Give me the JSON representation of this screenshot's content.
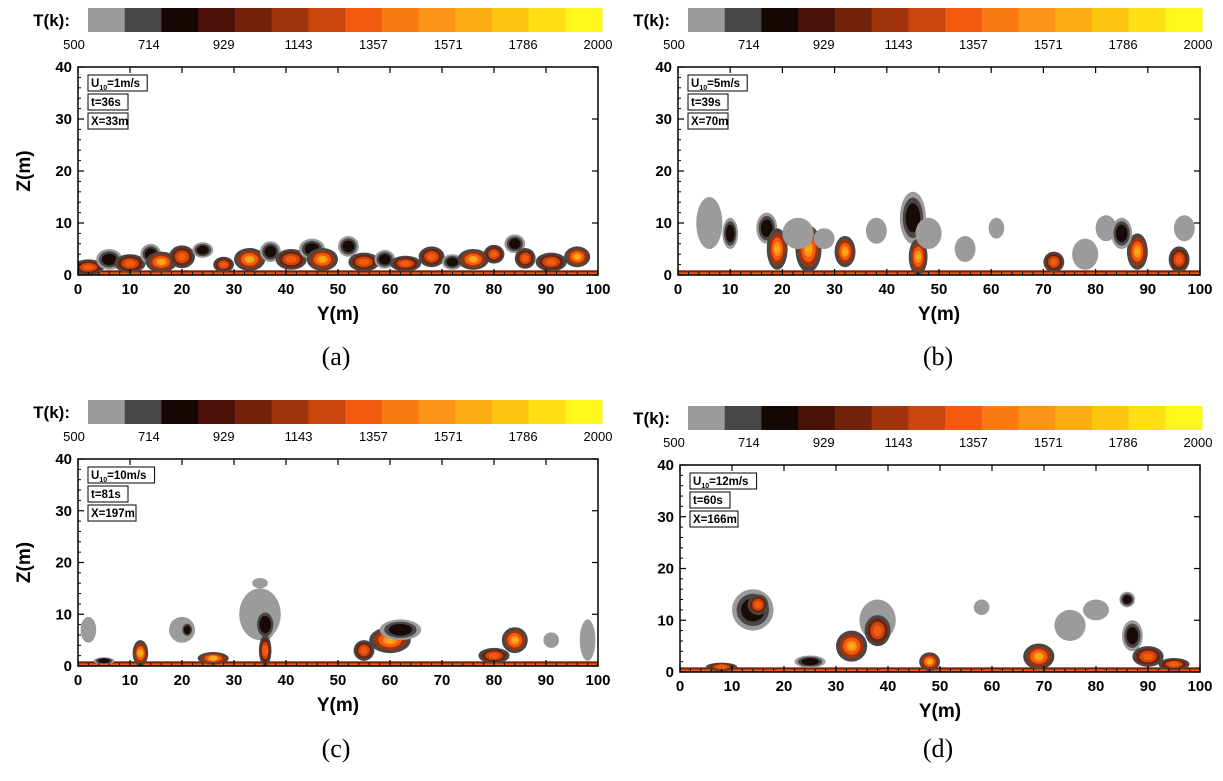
{
  "colorbar": {
    "title": "T(k):",
    "tick_labels": [
      "500",
      "714",
      "929",
      "1143",
      "1357",
      "1571",
      "1786",
      "2000"
    ],
    "colors": [
      "#9b9b9b",
      "#474747",
      "#150704",
      "#4a1206",
      "#72220a",
      "#a1330a",
      "#cc4710",
      "#f15a0f",
      "#fa7b14",
      "#fb9318",
      "#fcab12",
      "#fdc412",
      "#fedf13",
      "#fff71c"
    ]
  },
  "chart_data": [
    {
      "type": "heatmap",
      "panel_label": "(a)",
      "xlabel": "Y(m)",
      "ylabel": "Z(m)",
      "xlim": [
        0,
        100
      ],
      "ylim": [
        0,
        40
      ],
      "x_ticks": [
        "0",
        "10",
        "20",
        "30",
        "40",
        "50",
        "60",
        "70",
        "80",
        "90",
        "100"
      ],
      "y_ticks": [
        "0",
        "10",
        "20",
        "30",
        "40"
      ],
      "annotations": [
        "U10=1m/s",
        "t=36s",
        "X=33m"
      ],
      "parameters": {
        "U10_m_per_s": 1,
        "t_s": 36,
        "X_m": 33
      },
      "max_plume_height_m": 7,
      "field_description": "dense low flame front along full width, height about 2-7 m"
    },
    {
      "type": "heatmap",
      "panel_label": "(b)",
      "xlabel": "Y(m)",
      "ylabel": "",
      "xlim": [
        0,
        100
      ],
      "ylim": [
        0,
        40
      ],
      "x_ticks": [
        "0",
        "10",
        "20",
        "30",
        "40",
        "50",
        "60",
        "70",
        "80",
        "90",
        "100"
      ],
      "y_ticks": [
        "0",
        "10",
        "20",
        "30",
        "40"
      ],
      "annotations": [
        "U10=5m/s",
        "t=39s",
        "X=70m"
      ],
      "parameters": {
        "U10_m_per_s": 5,
        "t_s": 39,
        "X_m": 70
      },
      "max_plume_height_m": 16,
      "field_description": "plumes up to about 16 m, hot cores near 20-30 m and 45 m"
    },
    {
      "type": "heatmap",
      "panel_label": "(c)",
      "xlabel": "Y(m)",
      "ylabel": "Z(m)",
      "xlim": [
        0,
        100
      ],
      "ylim": [
        0,
        40
      ],
      "x_ticks": [
        "0",
        "10",
        "20",
        "30",
        "40",
        "50",
        "60",
        "70",
        "80",
        "90",
        "100"
      ],
      "y_ticks": [
        "0",
        "10",
        "20",
        "30",
        "40"
      ],
      "annotations": [
        "U10=10m/s",
        "t=81s",
        "X=197m"
      ],
      "parameters": {
        "U10_m_per_s": 10,
        "t_s": 81,
        "X_m": 197
      },
      "max_plume_height_m": 16,
      "field_description": "thin flame layer with sparse plumes near 12, 35, 60, 85 m"
    },
    {
      "type": "heatmap",
      "panel_label": "(d)",
      "xlabel": "Y(m)",
      "ylabel": "",
      "xlim": [
        0,
        100
      ],
      "ylim": [
        0,
        40
      ],
      "x_ticks": [
        "0",
        "10",
        "20",
        "30",
        "40",
        "50",
        "60",
        "70",
        "80",
        "90",
        "100"
      ],
      "y_ticks": [
        "0",
        "10",
        "20",
        "30",
        "40"
      ],
      "annotations": [
        "U10=12m/s",
        "t=60s",
        "X=166m"
      ],
      "parameters": {
        "U10_m_per_s": 12,
        "t_s": 60,
        "X_m": 166
      },
      "max_plume_height_m": 16,
      "field_description": "large detached smoke puffs near 15, 35 and 85-90 m"
    }
  ]
}
